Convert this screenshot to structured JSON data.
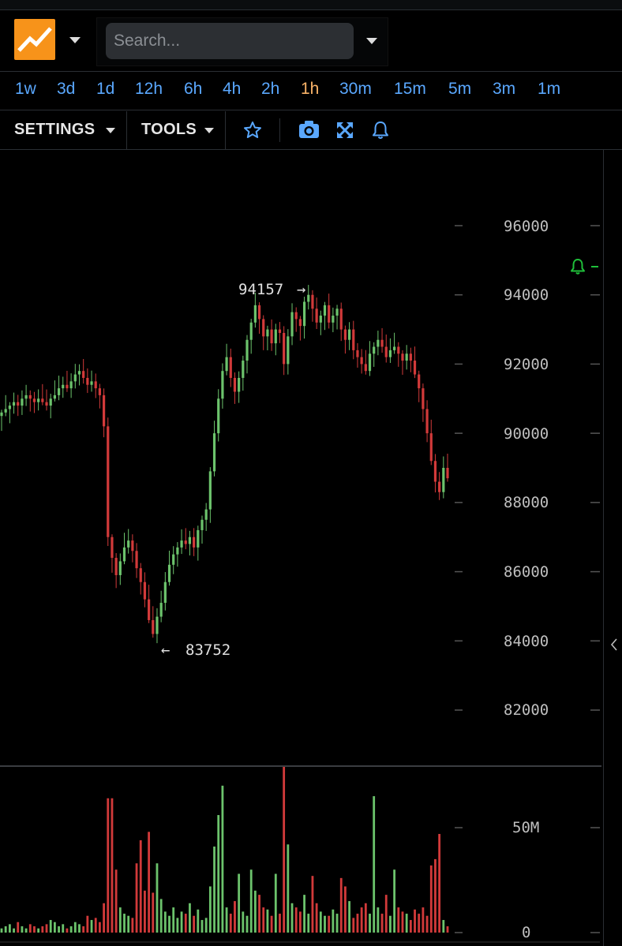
{
  "search": {
    "placeholder": "Search..."
  },
  "timeframes": [
    {
      "label": "1w",
      "active": false
    },
    {
      "label": "3d",
      "active": false
    },
    {
      "label": "1d",
      "active": false
    },
    {
      "label": "12h",
      "active": false
    },
    {
      "label": "6h",
      "active": false
    },
    {
      "label": "4h",
      "active": false
    },
    {
      "label": "2h",
      "active": false
    },
    {
      "label": "1h",
      "active": true
    },
    {
      "label": "30m",
      "active": false
    },
    {
      "label": "15m",
      "active": false
    },
    {
      "label": "5m",
      "active": false
    },
    {
      "label": "3m",
      "active": false
    },
    {
      "label": "1m",
      "active": false
    }
  ],
  "toolbar": {
    "settings_label": "SETTINGS",
    "tools_label": "TOOLS"
  },
  "icons": {
    "logo": "chart-logo-icon",
    "star": "star-icon",
    "camera": "camera-icon",
    "fullscreen": "fullscreen-icon",
    "bell": "bell-icon",
    "alert": "alert-bell-icon",
    "collapse": "chevron-left-icon"
  },
  "colors": {
    "up": "#6cc36c",
    "down": "#d23a3a",
    "accent": "#f7931a",
    "link": "#5aa8ff",
    "active_tf": "#f9b368"
  },
  "price_axis": {
    "labels": [
      "96000",
      "94000",
      "92000",
      "90000",
      "88000",
      "86000",
      "84000",
      "82000"
    ],
    "ticks": [
      96000,
      94000,
      92000,
      90000,
      88000,
      86000,
      84000,
      82000
    ]
  },
  "volume_axis": {
    "labels": [
      "50M",
      "0"
    ],
    "ticks": [
      50000000,
      0
    ]
  },
  "annotations": {
    "high": "94157",
    "low": "83752"
  },
  "chart_data": {
    "type": "candlestick",
    "title": "",
    "timeframe": "1h",
    "price_range": [
      80400,
      97500
    ],
    "high": 94157,
    "low": 83752,
    "alert_price": 95000,
    "volume_range": [
      0,
      88000000
    ],
    "grid": false,
    "closes": [
      90600,
      90700,
      90800,
      90900,
      90800,
      91000,
      91100,
      91000,
      90900,
      91000,
      90900,
      90800,
      91000,
      91100,
      91300,
      91400,
      91300,
      91500,
      91700,
      91800,
      91600,
      91400,
      91500,
      91300,
      91100,
      90200,
      87000,
      86400,
      85900,
      86300,
      86700,
      86900,
      86600,
      86100,
      85700,
      85200,
      84600,
      84200,
      84700,
      85100,
      85700,
      86200,
      86500,
      86700,
      86900,
      86800,
      87000,
      86700,
      87200,
      87500,
      87800,
      88900,
      90000,
      91000,
      91800,
      92200,
      91600,
      91200,
      91600,
      92100,
      92700,
      93200,
      93700,
      93300,
      92800,
      93000,
      92600,
      93000,
      92900,
      92000,
      92800,
      93500,
      93300,
      93100,
      93800,
      94000,
      93600,
      93200,
      93400,
      93700,
      93200,
      93400,
      93600,
      93000,
      92700,
      93000,
      92400,
      92200,
      92000,
      91800,
      92300,
      92500,
      92700,
      92500,
      92200,
      92400,
      92500,
      92300,
      92100,
      92300,
      92100,
      91700,
      91300,
      90700,
      90000,
      89200,
      88600,
      88300,
      89000,
      88700
    ],
    "volumes": [
      2,
      3,
      4,
      2,
      5,
      3,
      2,
      4,
      3,
      2,
      3,
      4,
      6,
      5,
      3,
      4,
      2,
      3,
      5,
      4,
      3,
      8,
      6,
      7,
      5,
      14,
      64,
      64,
      30,
      12,
      9,
      8,
      7,
      33,
      44,
      20,
      48,
      19,
      33,
      16,
      10,
      8,
      12,
      7,
      10,
      9,
      14,
      8,
      11,
      6,
      7,
      22,
      41,
      56,
      70,
      12,
      9,
      15,
      28,
      10,
      8,
      30,
      20,
      18,
      12,
      11,
      8,
      28,
      9,
      85,
      42,
      14,
      12,
      10,
      18,
      9,
      27,
      14,
      10,
      8,
      8,
      11,
      9,
      26,
      22,
      15,
      7,
      9,
      12,
      14,
      9,
      65,
      12,
      9,
      18,
      8,
      30,
      12,
      10,
      9,
      6,
      11,
      9,
      12,
      8,
      32,
      35,
      47,
      6,
      3
    ]
  }
}
